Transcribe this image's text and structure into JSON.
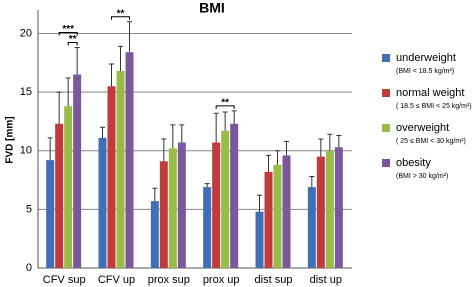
{
  "chart_data": {
    "type": "bar",
    "title": "BMI",
    "y_label": "FVD [mm]",
    "categories": [
      "CFV sup",
      "CFV up",
      "prox sup",
      "prox up",
      "dist sup",
      "dist up"
    ],
    "series": [
      {
        "name": "underweight",
        "note": "(BMI < 18.5 kg/m²)",
        "color": "#3f70b3",
        "values": [
          9.2,
          11.1,
          5.7,
          6.9,
          4.8,
          6.9
        ],
        "errors": [
          1.9,
          0.9,
          1.1,
          0.3,
          1.4,
          0.9
        ]
      },
      {
        "name": "normal weight",
        "note": "( 18.5 ≤ BMI < 25 kg/m²)",
        "color": "#c23b3c",
        "values": [
          12.3,
          15.5,
          9.1,
          10.7,
          8.2,
          9.5
        ],
        "errors": [
          2.7,
          1.9,
          1.9,
          2.5,
          1.4,
          1.5
        ]
      },
      {
        "name": "overweight",
        "note": "( 25 ≤ BMI < 30 kg/m²)",
        "color": "#98bc45",
        "values": [
          13.8,
          16.8,
          10.2,
          11.7,
          8.8,
          10.0
        ],
        "errors": [
          2.4,
          2.1,
          2.0,
          1.6,
          1.2,
          1.4
        ]
      },
      {
        "name": "obesity",
        "note": "(BMI > 30 kg/m²)",
        "color": "#7b579c",
        "values": [
          16.5,
          18.4,
          10.7,
          12.3,
          9.6,
          10.3
        ],
        "errors": [
          2.3,
          2.6,
          1.5,
          1.1,
          1.2,
          1.0
        ]
      }
    ],
    "significance": [
      {
        "label": "**",
        "category": "CFV sup",
        "from": "overweight",
        "to": "obesity"
      },
      {
        "label": "***",
        "category": "CFV sup",
        "from": "normal weight",
        "to": "obesity"
      },
      {
        "label": "**",
        "category": "CFV up",
        "from": "normal weight",
        "to": "obesity"
      },
      {
        "label": "**",
        "category": "prox up",
        "from": "normal weight",
        "to": "obesity"
      }
    ],
    "ylim": [
      0,
      22
    ],
    "yticks": [
      0,
      5,
      10,
      15,
      20
    ],
    "grid": true
  }
}
